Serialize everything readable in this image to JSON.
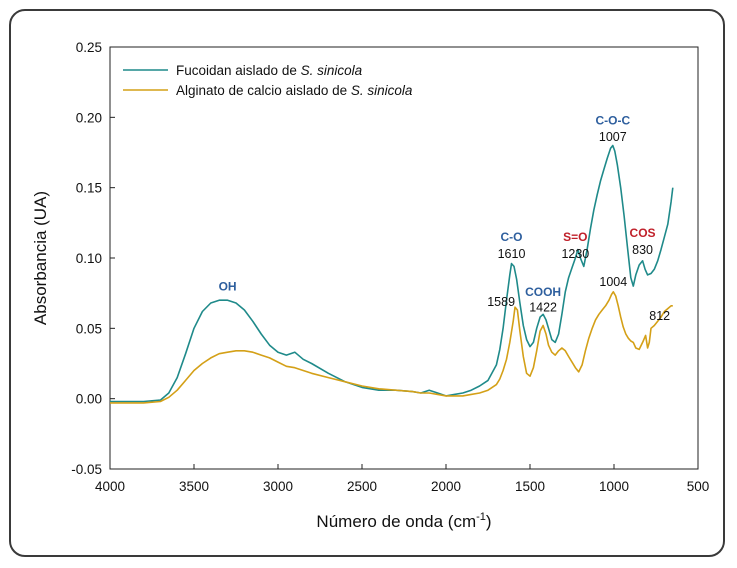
{
  "chart_data": {
    "type": "line",
    "xlabel": "Número de onda (cm",
    "xlabel_sup": "-1",
    "xlabel_close": ")",
    "ylabel": "Absorbancia (UA)",
    "xlim": [
      4000,
      500
    ],
    "ylim": [
      -0.05,
      0.25
    ],
    "x_ticks": [
      4000,
      3500,
      3000,
      2500,
      2000,
      1500,
      1000,
      500
    ],
    "x_tick_labels": [
      "4000",
      "3500",
      "3000",
      "2500",
      "2000",
      "1500",
      "1000",
      "500"
    ],
    "y_ticks": [
      -0.05,
      0.0,
      0.05,
      0.1,
      0.15,
      0.2,
      0.25
    ],
    "y_tick_labels": [
      "-0.05",
      "0.00",
      "0.05",
      "0.10",
      "0.15",
      "0.20",
      "0.25"
    ],
    "legend": {
      "position": "top-left",
      "entries": [
        {
          "prefix": "Fucoidan aislado de ",
          "italic": "S. sinicola",
          "color": "#1f8a8a"
        },
        {
          "prefix": "Alginato de calcio aislado de ",
          "italic": "S. sinicola",
          "color": "#d4a017"
        }
      ]
    },
    "series": [
      {
        "name": "Fucoidan aislado de S. sinicola",
        "color": "#1f8a8a",
        "x": [
          4000,
          3900,
          3800,
          3700,
          3650,
          3600,
          3550,
          3500,
          3450,
          3400,
          3350,
          3300,
          3250,
          3200,
          3150,
          3100,
          3050,
          3000,
          2950,
          2900,
          2850,
          2800,
          2700,
          2600,
          2500,
          2400,
          2300,
          2200,
          2150,
          2100,
          2050,
          2000,
          1950,
          1900,
          1850,
          1800,
          1750,
          1700,
          1680,
          1660,
          1640,
          1620,
          1610,
          1595,
          1580,
          1560,
          1540,
          1520,
          1500,
          1480,
          1460,
          1440,
          1422,
          1405,
          1390,
          1370,
          1350,
          1330,
          1310,
          1290,
          1270,
          1250,
          1230,
          1215,
          1200,
          1180,
          1160,
          1140,
          1120,
          1100,
          1080,
          1060,
          1040,
          1020,
          1007,
          995,
          980,
          960,
          940,
          920,
          900,
          885,
          870,
          850,
          830,
          815,
          800,
          780,
          760,
          740,
          720,
          700,
          680,
          660,
          650
        ],
        "y": [
          -0.002,
          -0.002,
          -0.002,
          -0.001,
          0.004,
          0.015,
          0.032,
          0.05,
          0.062,
          0.068,
          0.07,
          0.07,
          0.068,
          0.063,
          0.055,
          0.046,
          0.038,
          0.033,
          0.031,
          0.033,
          0.028,
          0.025,
          0.018,
          0.012,
          0.008,
          0.006,
          0.006,
          0.005,
          0.004,
          0.006,
          0.004,
          0.002,
          0.003,
          0.004,
          0.006,
          0.009,
          0.013,
          0.024,
          0.035,
          0.05,
          0.07,
          0.088,
          0.096,
          0.094,
          0.085,
          0.068,
          0.052,
          0.042,
          0.037,
          0.04,
          0.05,
          0.058,
          0.06,
          0.056,
          0.05,
          0.042,
          0.04,
          0.046,
          0.06,
          0.076,
          0.086,
          0.093,
          0.1,
          0.106,
          0.1,
          0.094,
          0.106,
          0.121,
          0.134,
          0.145,
          0.155,
          0.163,
          0.171,
          0.178,
          0.18,
          0.176,
          0.166,
          0.15,
          0.13,
          0.108,
          0.086,
          0.08,
          0.088,
          0.095,
          0.098,
          0.092,
          0.088,
          0.089,
          0.092,
          0.098,
          0.106,
          0.115,
          0.124,
          0.14,
          0.15
        ]
      },
      {
        "name": "Alginato de calcio aislado de S. sinicola",
        "color": "#d4a017",
        "x": [
          4000,
          3900,
          3800,
          3700,
          3650,
          3600,
          3550,
          3500,
          3450,
          3400,
          3350,
          3300,
          3250,
          3200,
          3150,
          3100,
          3050,
          3000,
          2950,
          2900,
          2850,
          2800,
          2700,
          2600,
          2500,
          2400,
          2300,
          2200,
          2150,
          2100,
          2050,
          2000,
          1950,
          1900,
          1850,
          1800,
          1750,
          1700,
          1680,
          1660,
          1640,
          1620,
          1600,
          1589,
          1575,
          1560,
          1540,
          1520,
          1500,
          1480,
          1460,
          1440,
          1422,
          1405,
          1390,
          1370,
          1350,
          1330,
          1310,
          1290,
          1270,
          1250,
          1230,
          1210,
          1190,
          1170,
          1150,
          1130,
          1110,
          1090,
          1070,
          1050,
          1030,
          1015,
          1004,
          990,
          975,
          960,
          945,
          930,
          915,
          900,
          885,
          870,
          850,
          830,
          812,
          800,
          790,
          780,
          760,
          740,
          720,
          700,
          680,
          660,
          650
        ],
        "y": [
          -0.003,
          -0.003,
          -0.003,
          -0.002,
          0.001,
          0.006,
          0.013,
          0.02,
          0.025,
          0.029,
          0.032,
          0.033,
          0.034,
          0.034,
          0.033,
          0.031,
          0.029,
          0.026,
          0.023,
          0.022,
          0.02,
          0.018,
          0.015,
          0.012,
          0.009,
          0.007,
          0.006,
          0.005,
          0.004,
          0.004,
          0.003,
          0.002,
          0.002,
          0.002,
          0.003,
          0.004,
          0.006,
          0.01,
          0.014,
          0.02,
          0.028,
          0.04,
          0.055,
          0.065,
          0.063,
          0.048,
          0.03,
          0.018,
          0.016,
          0.022,
          0.034,
          0.048,
          0.052,
          0.046,
          0.038,
          0.033,
          0.031,
          0.034,
          0.036,
          0.034,
          0.03,
          0.026,
          0.022,
          0.019,
          0.024,
          0.034,
          0.043,
          0.05,
          0.056,
          0.06,
          0.063,
          0.066,
          0.07,
          0.074,
          0.076,
          0.073,
          0.066,
          0.058,
          0.051,
          0.046,
          0.043,
          0.041,
          0.04,
          0.036,
          0.035,
          0.04,
          0.045,
          0.036,
          0.04,
          0.05,
          0.052,
          0.055,
          0.058,
          0.062,
          0.064,
          0.066,
          0.066
        ]
      }
    ],
    "annotations": [
      {
        "group": "OH",
        "group_color": "#2e5f9e",
        "x": 3300,
        "group_y": 0.077
      },
      {
        "group": "C-O",
        "group_color": "#2e5f9e",
        "number": "1610",
        "x": 1610,
        "group_y": 0.112,
        "number_y": 0.1
      },
      {
        "group": "COOH",
        "group_color": "#2e5f9e",
        "number": "1422",
        "x": 1422,
        "group_y": 0.073,
        "number_y": 0.062
      },
      {
        "group": "S=O",
        "group_color": "#c0202a",
        "number": "1230",
        "x": 1230,
        "group_y": 0.112,
        "number_y": 0.1
      },
      {
        "group": "C-O-C",
        "group_color": "#2e5f9e",
        "number": "1007",
        "x": 1007,
        "group_y": 0.195,
        "number_y": 0.183
      },
      {
        "group": "COS",
        "group_color": "#c0202a",
        "number": "830",
        "x": 830,
        "group_y": 0.115,
        "number_y": 0.103
      },
      {
        "number": "1589",
        "x": 1589,
        "number_y": 0.066,
        "align": "end"
      },
      {
        "number": "1004",
        "x": 1004,
        "number_y": 0.08
      },
      {
        "number": "812",
        "x": 790,
        "number_y": 0.056,
        "align": "start"
      }
    ]
  }
}
